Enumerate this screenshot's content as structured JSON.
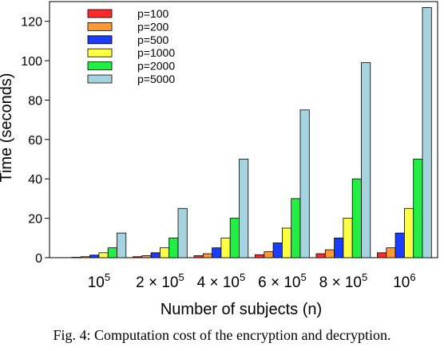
{
  "caption": "Fig. 4: Computation cost of the encryption and decryption.",
  "chart_data": {
    "type": "bar",
    "title": "",
    "xlabel": "Number of subjects (n)",
    "ylabel": "Time (seconds)",
    "ylim": [
      0,
      130
    ],
    "yticks": [
      0,
      20,
      40,
      60,
      80,
      100,
      120
    ],
    "grid": false,
    "legend_position": "top-left",
    "categories": [
      {
        "base": "10",
        "exp": "5",
        "mult": ""
      },
      {
        "base": "10",
        "exp": "5",
        "mult": "2 × "
      },
      {
        "base": "10",
        "exp": "5",
        "mult": "4 × "
      },
      {
        "base": "10",
        "exp": "5",
        "mult": "6 × "
      },
      {
        "base": "10",
        "exp": "5",
        "mult": "8 × "
      },
      {
        "base": "10",
        "exp": "6",
        "mult": ""
      }
    ],
    "series": [
      {
        "name": "p=100",
        "color": "#ff2a2a",
        "values": [
          0.2,
          0.5,
          1.0,
          1.5,
          2.0,
          2.5
        ]
      },
      {
        "name": "p=200",
        "color": "#ff9933",
        "values": [
          0.5,
          1.0,
          2.0,
          3.0,
          4.0,
          5.0
        ]
      },
      {
        "name": "p=500",
        "color": "#1a3cff",
        "values": [
          1.3,
          2.5,
          5.0,
          7.5,
          10.0,
          12.5
        ]
      },
      {
        "name": "p=1000",
        "color": "#ffff44",
        "values": [
          2.5,
          5.0,
          10.0,
          15.0,
          20.0,
          25.0
        ]
      },
      {
        "name": "p=2000",
        "color": "#22ee44",
        "values": [
          5.0,
          10.0,
          20.0,
          30.0,
          40.0,
          50.0
        ]
      },
      {
        "name": "p=5000",
        "color": "#a5d4e0",
        "values": [
          12.5,
          25.0,
          50.0,
          75.0,
          99.0,
          127.0
        ]
      }
    ]
  }
}
